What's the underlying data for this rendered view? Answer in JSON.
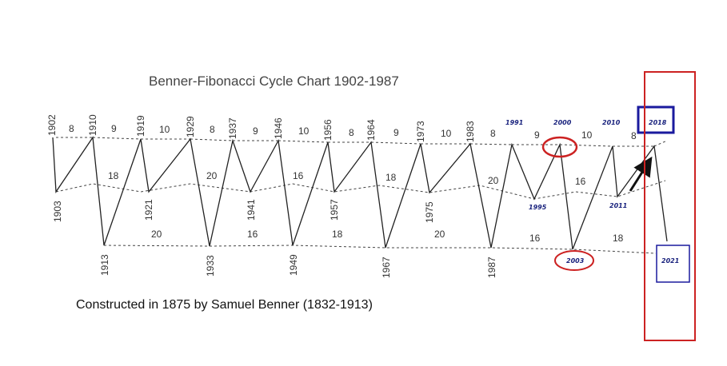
{
  "title": "Benner-Fibonacci Cycle Chart 1902-1987",
  "subtitle": "Constructed in 1875 by Samuel Benner (1832-1913)",
  "colors": {
    "ink": "#333333",
    "highlight_red": "#cc2222",
    "highlight_blue": "#1a1a9e",
    "new_year_blue": "#1a237e",
    "background": "#ffffff"
  },
  "peaks": [
    "1902",
    "1910",
    "1919",
    "1929",
    "1937",
    "1946",
    "1956",
    "1964",
    "1973",
    "1983",
    "1991",
    "2000",
    "2010",
    "2018"
  ],
  "peak_intervals": [
    "8",
    "9",
    "10",
    "8",
    "9",
    "10",
    "8",
    "9",
    "10",
    "8",
    "9",
    "10",
    "8"
  ],
  "middle_lows": [
    "1903",
    "1921",
    "1941",
    "1957",
    "1975",
    "1995",
    "2011"
  ],
  "middle_intervals": [
    "18",
    "20",
    "16",
    "18",
    "20",
    "16"
  ],
  "bottom_lows": [
    "1913",
    "1933",
    "1949",
    "1967",
    "1987",
    "2003",
    "2021"
  ],
  "bottom_intervals": [
    "20",
    "16",
    "18",
    "20",
    "16",
    "18"
  ],
  "annotations": {
    "circled_years": [
      "2000",
      "2003"
    ],
    "boxed_years": [
      "2018",
      "2021"
    ]
  }
}
